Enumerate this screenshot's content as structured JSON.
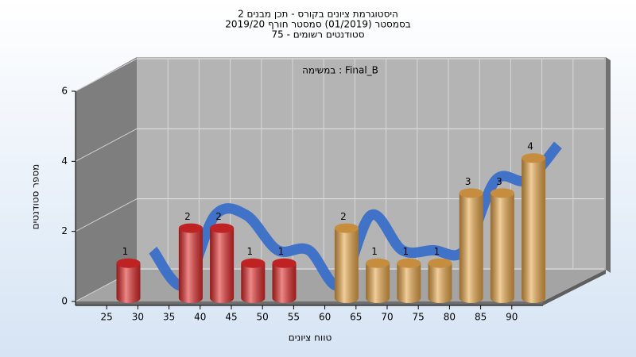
{
  "chart_data": {
    "type": "histogram",
    "title_lines": [
      "היסטוגרמת ציונים בקורס - תכן מבנים 2",
      "בסמסטר  (01/2019)  סמסטר חורף 2019/20",
      "סטודנטים רשומים - 75"
    ],
    "annotation": "במשימה : Final_B",
    "x_label": "טווח ציונים",
    "y_label": "מספר סטודנטים",
    "bins": [
      25,
      30,
      35,
      40,
      45,
      50,
      55,
      60,
      65,
      70,
      75,
      80,
      85,
      90,
      95
    ],
    "values": [
      1,
      0,
      2,
      2,
      1,
      1,
      0,
      2,
      1,
      1,
      1,
      3,
      3,
      4
    ],
    "colors": [
      "#e02828",
      "#e02828",
      "#e02828",
      "#e02828",
      "#e02828",
      "#e02828",
      "#e02828",
      "#e8a648",
      "#e8a648",
      "#e8a648",
      "#e8a648",
      "#e8a648",
      "#e8a648",
      "#e8a648"
    ],
    "trend_color": "#3a6fc8",
    "xlim": [
      20,
      95
    ],
    "xticks": [
      25,
      30,
      35,
      40,
      45,
      50,
      55,
      60,
      65,
      70,
      75,
      80,
      85,
      90
    ],
    "ylim": [
      0,
      6
    ],
    "yticks": [
      0,
      2,
      4,
      6
    ],
    "grid": true
  }
}
